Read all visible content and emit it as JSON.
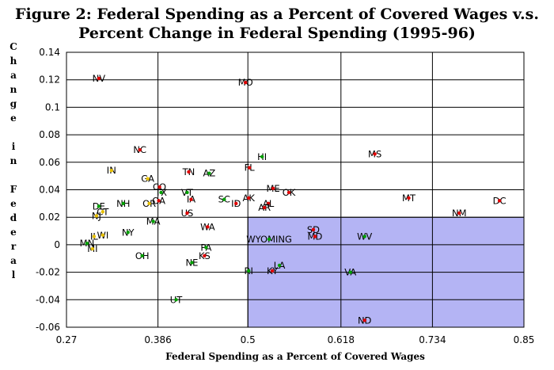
{
  "figure": {
    "title_line1": "Figure 2: Federal Spending as a Percent of Covered Wages v.s.",
    "title_line2": "Percent Change in Federal Spending (1995-96)"
  },
  "colors": {
    "shade": "#b4b4f4",
    "shade_border": "#000000",
    "grid": "#000000",
    "label_text": "#000000",
    "marker_green": "#00a000",
    "marker_red": "#e00000",
    "marker_yellow": "#e8c000"
  },
  "chart_data": {
    "type": "scatter",
    "title": "Figure 2: Federal Spending as a Percent of Covered Wages v.s. Percent Change in Federal Spending (1995-96)",
    "xlabel": "Federal Spending as a Percent of Covered Wages",
    "ylabel": "Change in Federal Spending",
    "xlim": [
      0.27,
      0.85
    ],
    "ylim": [
      -0.06,
      0.14
    ],
    "xticks": [
      0.27,
      0.386,
      0.5,
      0.618,
      0.734,
      0.85
    ],
    "xtick_labels": [
      "0.27",
      "0.386",
      "0.5",
      "0.618",
      "0.734",
      "0.85"
    ],
    "yticks": [
      -0.06,
      -0.04,
      -0.02,
      0,
      0.02,
      0.04,
      0.06,
      0.08,
      0.1,
      0.12,
      0.14
    ],
    "ytick_labels": [
      "-0.06",
      "-0.04",
      "-0.02",
      "0",
      "0.02",
      "0.04",
      "0.06",
      "0.08",
      "0.1",
      "0.12",
      "0.14"
    ],
    "grid": true,
    "shaded_region": {
      "x": [
        0.5,
        0.85
      ],
      "y": [
        -0.06,
        0.02
      ]
    },
    "points": [
      {
        "label": "NV",
        "x": 0.311,
        "y": 0.121,
        "color": "red"
      },
      {
        "label": "MO",
        "x": 0.497,
        "y": 0.118,
        "color": "red"
      },
      {
        "label": "NC",
        "x": 0.363,
        "y": 0.069,
        "color": "red"
      },
      {
        "label": "HI",
        "x": 0.518,
        "y": 0.064,
        "color": "green"
      },
      {
        "label": "MS",
        "x": 0.661,
        "y": 0.066,
        "color": "red"
      },
      {
        "label": "IN",
        "x": 0.327,
        "y": 0.054,
        "color": "yellow"
      },
      {
        "label": "FL",
        "x": 0.502,
        "y": 0.056,
        "color": "red"
      },
      {
        "label": "TN",
        "x": 0.425,
        "y": 0.053,
        "color": "red"
      },
      {
        "label": "AZ",
        "x": 0.451,
        "y": 0.052,
        "color": "green"
      },
      {
        "label": "GA",
        "x": 0.373,
        "y": 0.048,
        "color": "yellow"
      },
      {
        "label": "CO",
        "x": 0.388,
        "y": 0.042,
        "color": "red"
      },
      {
        "label": "ME",
        "x": 0.532,
        "y": 0.041,
        "color": "red"
      },
      {
        "label": "TX",
        "x": 0.39,
        "y": 0.038,
        "color": "green"
      },
      {
        "label": "VT",
        "x": 0.423,
        "y": 0.038,
        "color": "green"
      },
      {
        "label": "OK",
        "x": 0.552,
        "y": 0.038,
        "color": "red"
      },
      {
        "label": "IA",
        "x": 0.428,
        "y": 0.033,
        "color": "red"
      },
      {
        "label": "SC",
        "x": 0.47,
        "y": 0.033,
        "color": "green"
      },
      {
        "label": "AK",
        "x": 0.501,
        "y": 0.034,
        "color": "red"
      },
      {
        "label": "OA",
        "x": 0.387,
        "y": 0.032,
        "color": "red"
      },
      {
        "label": "ID",
        "x": 0.485,
        "y": 0.03,
        "color": "red"
      },
      {
        "label": "AL",
        "x": 0.526,
        "y": 0.03,
        "color": "red"
      },
      {
        "label": "OR",
        "x": 0.375,
        "y": 0.03,
        "color": "yellow"
      },
      {
        "label": "NH",
        "x": 0.342,
        "y": 0.03,
        "color": "green"
      },
      {
        "label": "MT",
        "x": 0.704,
        "y": 0.034,
        "color": "red"
      },
      {
        "label": "DC",
        "x": 0.819,
        "y": 0.032,
        "color": "red"
      },
      {
        "label": "DE",
        "x": 0.311,
        "y": 0.028,
        "color": "green"
      },
      {
        "label": "AR",
        "x": 0.521,
        "y": 0.027,
        "color": "red"
      },
      {
        "label": "CT",
        "x": 0.316,
        "y": 0.024,
        "color": "yellow"
      },
      {
        "label": "US",
        "x": 0.423,
        "y": 0.023,
        "color": "red"
      },
      {
        "label": "NM",
        "x": 0.768,
        "y": 0.023,
        "color": "red"
      },
      {
        "label": "NJ",
        "x": 0.308,
        "y": 0.021,
        "color": "yellow"
      },
      {
        "label": "MA",
        "x": 0.38,
        "y": 0.017,
        "color": "green"
      },
      {
        "label": "WA",
        "x": 0.449,
        "y": 0.013,
        "color": "red"
      },
      {
        "label": "SD",
        "x": 0.583,
        "y": 0.011,
        "color": "red"
      },
      {
        "label": "NY",
        "x": 0.348,
        "y": 0.009,
        "color": "green"
      },
      {
        "label": "WI",
        "x": 0.316,
        "y": 0.007,
        "color": "yellow"
      },
      {
        "label": "IL",
        "x": 0.305,
        "y": 0.006,
        "color": "yellow"
      },
      {
        "label": "MD",
        "x": 0.585,
        "y": 0.006,
        "color": "red"
      },
      {
        "label": "WV",
        "x": 0.648,
        "y": 0.006,
        "color": "green"
      },
      {
        "label": "WYOMING",
        "x": 0.527,
        "y": 0.004,
        "color": "green"
      },
      {
        "label": "MN",
        "x": 0.296,
        "y": 0.001,
        "color": "green"
      },
      {
        "label": "MI",
        "x": 0.303,
        "y": -0.003,
        "color": "yellow"
      },
      {
        "label": "PA",
        "x": 0.447,
        "y": -0.002,
        "color": "green"
      },
      {
        "label": "OH",
        "x": 0.366,
        "y": -0.008,
        "color": "green"
      },
      {
        "label": "KS",
        "x": 0.445,
        "y": -0.008,
        "color": "red"
      },
      {
        "label": "NE",
        "x": 0.429,
        "y": -0.013,
        "color": "green"
      },
      {
        "label": "LA",
        "x": 0.54,
        "y": -0.015,
        "color": "green"
      },
      {
        "label": "RI",
        "x": 0.501,
        "y": -0.019,
        "color": "green"
      },
      {
        "label": "KY",
        "x": 0.531,
        "y": -0.019,
        "color": "red"
      },
      {
        "label": "VA",
        "x": 0.63,
        "y": -0.02,
        "color": "green"
      },
      {
        "label": "UT",
        "x": 0.409,
        "y": -0.04,
        "color": "green"
      },
      {
        "label": "ND",
        "x": 0.648,
        "y": -0.055,
        "color": "red"
      }
    ]
  }
}
